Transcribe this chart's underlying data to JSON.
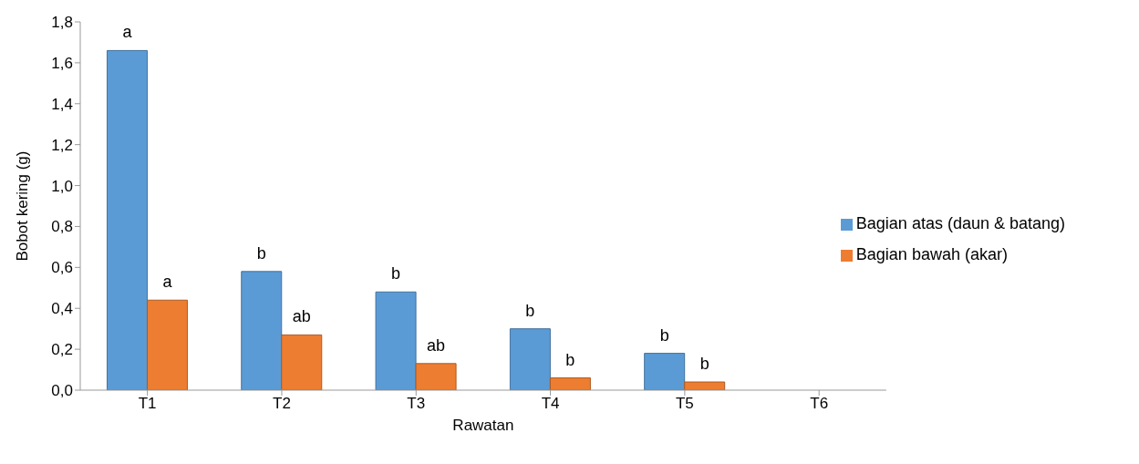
{
  "chart_data": {
    "type": "bar",
    "xlabel": "Rawatan",
    "ylabel": "Bobot kering (g)",
    "categories": [
      "T1",
      "T2",
      "T3",
      "T4",
      "T5",
      "T6"
    ],
    "series": [
      {
        "name": "Bagian atas (daun & batang)",
        "color": "#5b9bd5",
        "values": [
          1.66,
          0.58,
          0.48,
          0.3,
          0.18,
          0
        ]
      },
      {
        "name": "Bagian bawah (akar)",
        "color": "#ed7d31",
        "values": [
          0.44,
          0.27,
          0.13,
          0.06,
          0.04,
          0
        ]
      }
    ],
    "ylim": [
      0,
      1.8
    ],
    "yticks": [
      {
        "value": 0,
        "label": "0,0"
      },
      {
        "value": 0.2,
        "label": "0,2"
      },
      {
        "value": 0.4,
        "label": "0,4"
      },
      {
        "value": 0.6,
        "label": "0,6"
      },
      {
        "value": 0.8,
        "label": "0,8"
      },
      {
        "value": 1.0,
        "label": "1,0"
      },
      {
        "value": 1.2,
        "label": "1,2"
      },
      {
        "value": 1.4,
        "label": "1,4"
      },
      {
        "value": 1.6,
        "label": "1,6"
      },
      {
        "value": 1.8,
        "label": "1,8"
      }
    ],
    "grid": false,
    "legend": "right",
    "annotations": [
      {
        "text": "a",
        "x": "T1",
        "y": 1.66
      },
      {
        "text": "a",
        "x": "T1",
        "y": 0.44
      },
      {
        "text": "b",
        "x": "T2",
        "y": 0.58
      },
      {
        "text": "ab",
        "x": "T2",
        "y": 0.27
      },
      {
        "text": "b",
        "x": "T3",
        "y": 0.48
      },
      {
        "text": "ab",
        "x": "T3",
        "y": 0.13
      },
      {
        "text": "b",
        "x": "T4",
        "y": 0.3
      },
      {
        "text": "b",
        "x": "T4",
        "y": 0.06
      },
      {
        "text": "b",
        "x": "T5",
        "y": 0.18
      },
      {
        "text": "b",
        "x": "T5",
        "y": 0.04
      }
    ]
  }
}
